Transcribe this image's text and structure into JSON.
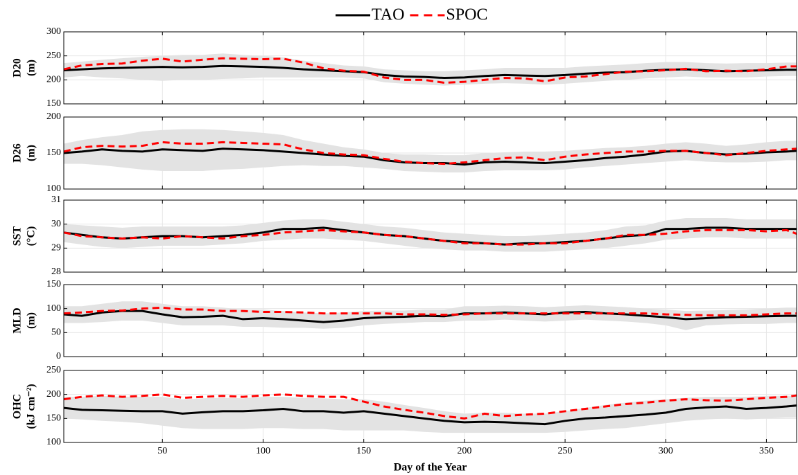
{
  "chart_data": [
    {
      "type": "line",
      "ylabel": [
        "D20",
        "(m)"
      ],
      "x": [
        1,
        10,
        20,
        30,
        40,
        50,
        60,
        70,
        80,
        90,
        100,
        110,
        120,
        130,
        140,
        150,
        160,
        170,
        180,
        190,
        200,
        210,
        220,
        230,
        240,
        250,
        260,
        270,
        280,
        290,
        300,
        310,
        320,
        330,
        340,
        350,
        360,
        365
      ],
      "xlim": [
        1,
        365
      ],
      "xticks": [
        50,
        100,
        150,
        200,
        250,
        300,
        350
      ],
      "ylim": [
        150,
        300
      ],
      "yticks": [
        150,
        200,
        250,
        300
      ],
      "grid": true,
      "band": {
        "color": "#e3e3e3",
        "lower": [
          205,
          208,
          205,
          203,
          200,
          198,
          200,
          200,
          202,
          203,
          205,
          205,
          205,
          205,
          205,
          203,
          195,
          192,
          190,
          188,
          190,
          192,
          193,
          192,
          190,
          192,
          195,
          198,
          200,
          203,
          205,
          207,
          205,
          205,
          205,
          207,
          208,
          208
        ],
        "upper": [
          235,
          238,
          242,
          245,
          248,
          250,
          252,
          252,
          255,
          252,
          250,
          247,
          240,
          235,
          230,
          228,
          222,
          220,
          218,
          218,
          220,
          222,
          225,
          225,
          225,
          225,
          228,
          230,
          232,
          235,
          237,
          237,
          235,
          234,
          235,
          235,
          236,
          236
        ]
      },
      "series": [
        {
          "name": "TAO",
          "color": "#000000",
          "dash": false,
          "values": [
            220,
            222,
            224,
            225,
            226,
            227,
            226,
            227,
            229,
            228,
            227,
            225,
            222,
            220,
            218,
            216,
            210,
            207,
            206,
            204,
            205,
            208,
            210,
            209,
            208,
            210,
            213,
            215,
            216,
            219,
            221,
            222,
            220,
            218,
            219,
            220,
            221,
            221
          ]
        },
        {
          "name": "SPOC",
          "color": "#ff0000",
          "dash": true,
          "values": [
            222,
            230,
            233,
            234,
            240,
            244,
            238,
            242,
            245,
            244,
            243,
            244,
            236,
            224,
            219,
            217,
            205,
            200,
            200,
            194,
            196,
            200,
            204,
            203,
            197,
            205,
            207,
            212,
            217,
            218,
            220,
            223,
            218,
            219,
            218,
            222,
            228,
            228
          ]
        }
      ]
    },
    {
      "type": "line",
      "ylabel": [
        "D26",
        "(m)"
      ],
      "x": [
        1,
        10,
        20,
        30,
        40,
        50,
        60,
        70,
        80,
        90,
        100,
        110,
        120,
        130,
        140,
        150,
        160,
        170,
        180,
        190,
        200,
        210,
        220,
        230,
        240,
        250,
        260,
        270,
        280,
        290,
        300,
        310,
        320,
        330,
        340,
        350,
        360,
        365
      ],
      "xlim": [
        1,
        365
      ],
      "xticks": [
        50,
        100,
        150,
        200,
        250,
        300,
        350
      ],
      "ylim": [
        100,
        200
      ],
      "yticks": [
        100,
        150,
        200
      ],
      "grid": true,
      "band": {
        "color": "#e3e3e3",
        "lower": [
          135,
          135,
          133,
          130,
          127,
          125,
          125,
          125,
          127,
          128,
          130,
          132,
          133,
          132,
          132,
          130,
          128,
          125,
          124,
          123,
          123,
          125,
          126,
          126,
          126,
          127,
          130,
          132,
          134,
          136,
          138,
          140,
          138,
          137,
          137,
          138,
          140,
          140
        ],
        "upper": [
          163,
          168,
          172,
          175,
          180,
          182,
          183,
          183,
          182,
          180,
          178,
          175,
          168,
          163,
          158,
          155,
          150,
          148,
          148,
          147,
          147,
          150,
          151,
          152,
          152,
          153,
          155,
          157,
          158,
          160,
          163,
          165,
          163,
          160,
          162,
          165,
          167,
          167
        ]
      },
      "series": [
        {
          "color": "#000000",
          "dash": false,
          "values": [
            150,
            152,
            155,
            153,
            152,
            155,
            154,
            153,
            156,
            155,
            154,
            152,
            150,
            148,
            146,
            145,
            140,
            137,
            136,
            136,
            134,
            137,
            138,
            137,
            136,
            138,
            140,
            143,
            145,
            148,
            152,
            153,
            150,
            148,
            149,
            151,
            152,
            153
          ]
        },
        {
          "color": "#ff0000",
          "dash": true,
          "values": [
            152,
            158,
            160,
            159,
            160,
            165,
            163,
            163,
            165,
            164,
            163,
            162,
            155,
            150,
            148,
            147,
            142,
            138,
            136,
            135,
            137,
            140,
            143,
            144,
            140,
            145,
            148,
            150,
            152,
            152,
            153,
            153,
            150,
            147,
            150,
            153,
            155,
            156
          ]
        }
      ]
    },
    {
      "type": "line",
      "ylabel": [
        "SST",
        "(°C)"
      ],
      "x": [
        1,
        10,
        20,
        30,
        40,
        50,
        60,
        70,
        80,
        90,
        100,
        110,
        120,
        130,
        140,
        150,
        160,
        170,
        180,
        190,
        200,
        210,
        220,
        230,
        240,
        250,
        260,
        270,
        280,
        290,
        300,
        310,
        320,
        330,
        340,
        350,
        360,
        365
      ],
      "xlim": [
        1,
        365
      ],
      "xticks": [
        50,
        100,
        150,
        200,
        250,
        300,
        350
      ],
      "ylim": [
        28,
        31
      ],
      "yticks": [
        28,
        29,
        30,
        31
      ],
      "grid": true,
      "band": {
        "color": "#e3e3e3",
        "lower": [
          29.25,
          29.15,
          29.05,
          29.0,
          29.05,
          29.1,
          29.1,
          29.1,
          29.15,
          29.2,
          29.3,
          29.35,
          29.4,
          29.4,
          29.35,
          29.3,
          29.2,
          29.1,
          29.0,
          28.95,
          28.9,
          28.9,
          28.85,
          28.85,
          28.85,
          28.9,
          28.95,
          29.0,
          29.1,
          29.2,
          29.35,
          29.4,
          29.45,
          29.45,
          29.4,
          29.4,
          29.4,
          29.4
        ],
        "upper": [
          30.0,
          29.95,
          29.9,
          29.85,
          29.9,
          29.9,
          29.9,
          29.9,
          29.9,
          29.95,
          30.05,
          30.15,
          30.2,
          30.2,
          30.1,
          30.0,
          29.9,
          29.85,
          29.75,
          29.65,
          29.6,
          29.55,
          29.5,
          29.5,
          29.55,
          29.6,
          29.65,
          29.75,
          29.9,
          29.95,
          30.15,
          30.25,
          30.25,
          30.25,
          30.2,
          30.2,
          30.2,
          30.2
        ]
      },
      "series": [
        {
          "color": "#000000",
          "dash": false,
          "values": [
            29.65,
            29.55,
            29.45,
            29.4,
            29.45,
            29.5,
            29.5,
            29.45,
            29.5,
            29.55,
            29.65,
            29.8,
            29.8,
            29.85,
            29.75,
            29.65,
            29.55,
            29.5,
            29.4,
            29.3,
            29.25,
            29.2,
            29.15,
            29.2,
            29.2,
            29.25,
            29.3,
            29.4,
            29.5,
            29.55,
            29.8,
            29.8,
            29.85,
            29.85,
            29.8,
            29.8,
            29.8,
            29.8
          ]
        },
        {
          "color": "#ff0000",
          "dash": true,
          "values": [
            29.65,
            29.5,
            29.45,
            29.4,
            29.45,
            29.4,
            29.5,
            29.45,
            29.4,
            29.5,
            29.55,
            29.65,
            29.7,
            29.75,
            29.7,
            29.65,
            29.55,
            29.5,
            29.4,
            29.3,
            29.2,
            29.2,
            29.15,
            29.15,
            29.2,
            29.2,
            29.3,
            29.4,
            29.55,
            29.55,
            29.6,
            29.7,
            29.75,
            29.75,
            29.75,
            29.7,
            29.75,
            29.6
          ]
        }
      ]
    },
    {
      "type": "line",
      "ylabel": [
        "MLD",
        "(m)"
      ],
      "x": [
        1,
        10,
        20,
        30,
        40,
        50,
        60,
        70,
        80,
        90,
        100,
        110,
        120,
        130,
        140,
        150,
        160,
        170,
        180,
        190,
        200,
        210,
        220,
        230,
        240,
        250,
        260,
        270,
        280,
        290,
        300,
        310,
        320,
        330,
        340,
        350,
        360,
        365
      ],
      "xlim": [
        1,
        365
      ],
      "xticks": [
        50,
        100,
        150,
        200,
        250,
        300,
        350
      ],
      "ylim": [
        0,
        150
      ],
      "yticks": [
        0,
        50,
        100,
        150
      ],
      "grid": true,
      "band": {
        "color": "#e3e3e3",
        "lower": [
          70,
          70,
          72,
          75,
          75,
          70,
          65,
          65,
          65,
          62,
          62,
          60,
          60,
          58,
          60,
          65,
          68,
          70,
          72,
          72,
          75,
          75,
          77,
          75,
          73,
          75,
          77,
          75,
          73,
          70,
          65,
          55,
          65,
          67,
          68,
          68,
          70,
          70
        ],
        "upper": [
          105,
          105,
          110,
          115,
          115,
          110,
          105,
          105,
          102,
          98,
          98,
          95,
          92,
          90,
          92,
          95,
          96,
          96,
          98,
          98,
          105,
          105,
          106,
          105,
          103,
          105,
          107,
          105,
          103,
          100,
          98,
          95,
          96,
          97,
          98,
          100,
          102,
          102
        ]
      },
      "series": [
        {
          "color": "#000000",
          "dash": false,
          "values": [
            88,
            85,
            92,
            95,
            95,
            88,
            82,
            83,
            85,
            78,
            80,
            78,
            75,
            72,
            75,
            80,
            82,
            83,
            85,
            84,
            90,
            90,
            92,
            90,
            88,
            92,
            93,
            90,
            88,
            85,
            82,
            78,
            80,
            82,
            83,
            84,
            85,
            85
          ]
        },
        {
          "color": "#ff0000",
          "dash": true,
          "values": [
            90,
            92,
            95,
            96,
            100,
            102,
            98,
            98,
            95,
            95,
            93,
            93,
            92,
            90,
            90,
            90,
            90,
            88,
            88,
            87,
            88,
            90,
            90,
            90,
            90,
            90,
            90,
            90,
            90,
            90,
            88,
            87,
            86,
            86,
            86,
            88,
            90,
            90
          ]
        }
      ]
    },
    {
      "type": "line",
      "ylabel": [
        "OHC",
        "(kJ cm⁻²)"
      ],
      "xlabel": "Day of the Year",
      "x": [
        1,
        10,
        20,
        30,
        40,
        50,
        60,
        70,
        80,
        90,
        100,
        110,
        120,
        130,
        140,
        150,
        160,
        170,
        180,
        190,
        200,
        210,
        220,
        230,
        240,
        250,
        260,
        270,
        280,
        290,
        300,
        310,
        320,
        330,
        340,
        350,
        360,
        365
      ],
      "xlim": [
        1,
        365
      ],
      "xticks": [
        50,
        100,
        150,
        200,
        250,
        300,
        350
      ],
      "ylim": [
        100,
        250
      ],
      "yticks": [
        100,
        150,
        200,
        250
      ],
      "grid": true,
      "band": {
        "color": "#e3e3e3",
        "lower": [
          150,
          148,
          145,
          143,
          140,
          135,
          130,
          128,
          128,
          128,
          130,
          130,
          128,
          128,
          125,
          125,
          125,
          125,
          122,
          120,
          120,
          120,
          120,
          120,
          120,
          122,
          125,
          128,
          130,
          135,
          140,
          145,
          148,
          150,
          148,
          150,
          152,
          152
        ],
        "upper": [
          195,
          195,
          197,
          195,
          195,
          195,
          190,
          192,
          193,
          192,
          195,
          195,
          193,
          192,
          190,
          190,
          185,
          178,
          172,
          165,
          160,
          162,
          162,
          160,
          160,
          165,
          172,
          178,
          183,
          187,
          190,
          193,
          195,
          195,
          195,
          197,
          197,
          197
        ]
      },
      "series": [
        {
          "color": "#000000",
          "dash": false,
          "values": [
            172,
            168,
            167,
            166,
            165,
            165,
            160,
            163,
            165,
            165,
            167,
            170,
            165,
            165,
            162,
            165,
            160,
            155,
            150,
            145,
            142,
            143,
            142,
            140,
            138,
            145,
            150,
            152,
            155,
            158,
            162,
            170,
            173,
            175,
            170,
            172,
            175,
            177
          ]
        },
        {
          "color": "#ff0000",
          "dash": true,
          "values": [
            190,
            195,
            198,
            195,
            197,
            200,
            193,
            195,
            197,
            195,
            198,
            200,
            197,
            195,
            195,
            185,
            175,
            168,
            162,
            155,
            150,
            160,
            155,
            158,
            160,
            165,
            170,
            175,
            180,
            183,
            187,
            190,
            188,
            187,
            190,
            193,
            195,
            198
          ]
        }
      ]
    }
  ]
}
